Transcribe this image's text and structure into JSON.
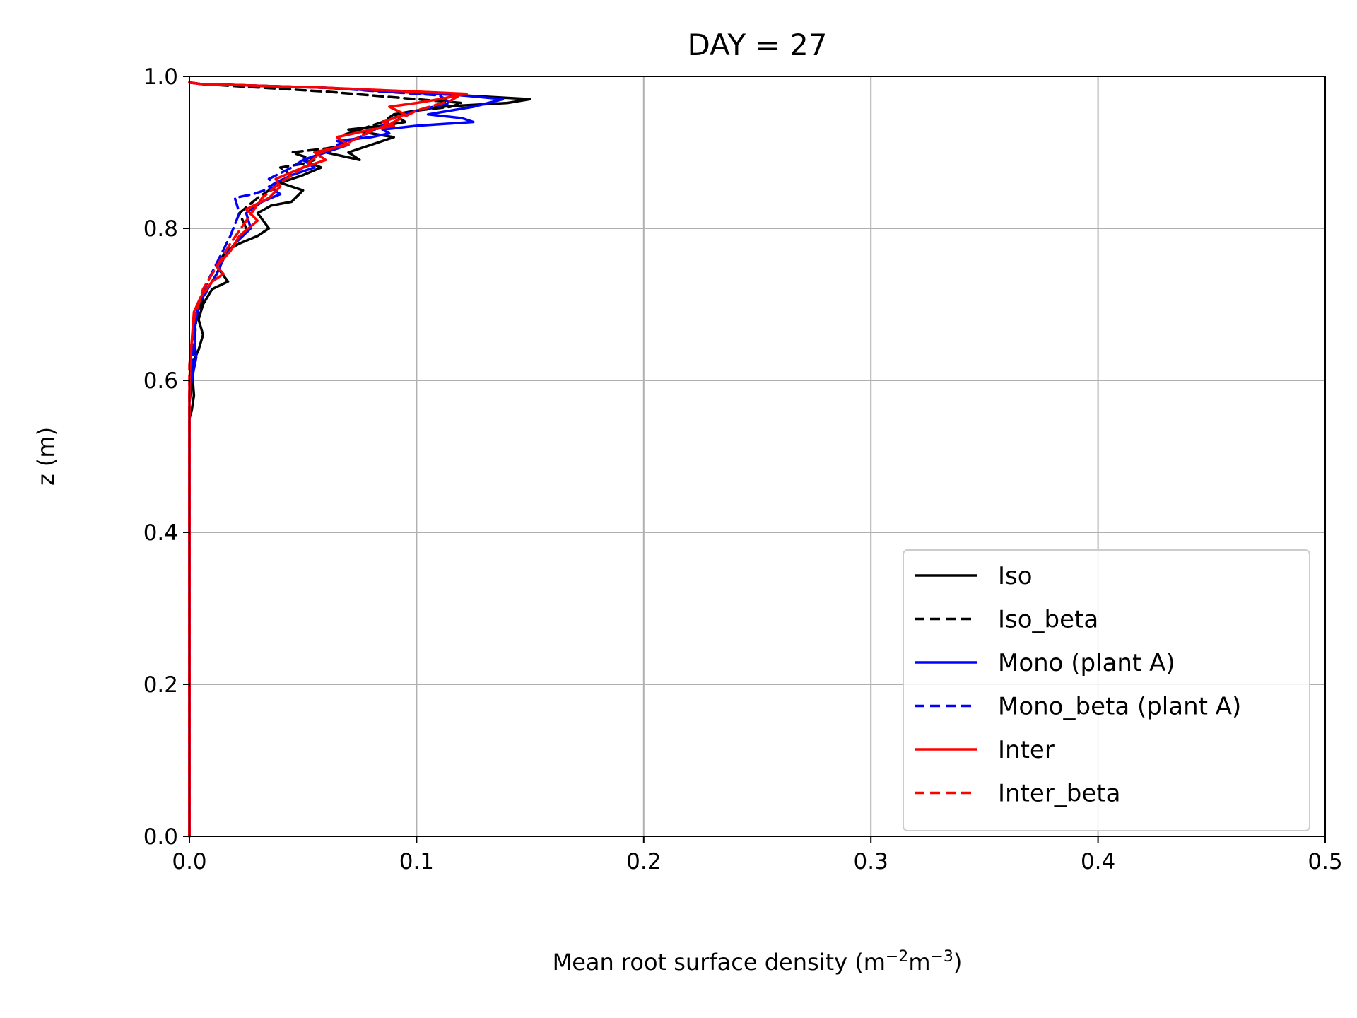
{
  "chart_data": {
    "type": "line",
    "title": "DAY = 27",
    "xlabel": "Mean root surface density",
    "xlabel_unit": "(m",
    "xlabel_exp1": "−2",
    "xlabel_mid": "m",
    "xlabel_exp2": "−3",
    "xlabel_close": ")",
    "ylabel": "z (m)",
    "xlim": [
      0.0,
      0.5
    ],
    "ylim": [
      0.0,
      1.0
    ],
    "xticks": [
      "0.0",
      "0.1",
      "0.2",
      "0.3",
      "0.4",
      "0.5"
    ],
    "yticks": [
      "0.0",
      "0.2",
      "0.4",
      "0.6",
      "0.8",
      "1.0"
    ],
    "grid": true,
    "legend_position": "lower-right",
    "series": [
      {
        "name": "Iso",
        "color": "#000000",
        "dash": "solid",
        "x": [
          0,
          0,
          0.001,
          0.002,
          0.001,
          0.004,
          0.006,
          0.004,
          0.006,
          0.01,
          0.017,
          0.012,
          0.016,
          0.022,
          0.03,
          0.035,
          0.03,
          0.036,
          0.045,
          0.05,
          0.04,
          0.05,
          0.058,
          0.05,
          0.06,
          0.075,
          0.07,
          0.08,
          0.09,
          0.07,
          0.085,
          0.095,
          0.09,
          0.11,
          0.14,
          0.15,
          0.12,
          0.06,
          0.005,
          0
        ],
        "y": [
          0.0,
          0.55,
          0.56,
          0.58,
          0.62,
          0.64,
          0.66,
          0.68,
          0.7,
          0.72,
          0.73,
          0.75,
          0.77,
          0.78,
          0.79,
          0.8,
          0.82,
          0.83,
          0.835,
          0.85,
          0.86,
          0.87,
          0.88,
          0.89,
          0.9,
          0.89,
          0.9,
          0.91,
          0.92,
          0.93,
          0.935,
          0.94,
          0.95,
          0.96,
          0.965,
          0.97,
          0.975,
          0.985,
          0.99,
          0.992
        ]
      },
      {
        "name": "Iso_beta",
        "color": "#000000",
        "dash": "dashed",
        "x": [
          0,
          0,
          0.001,
          0.002,
          0.003,
          0.005,
          0.008,
          0.012,
          0.015,
          0.02,
          0.025,
          0.022,
          0.03,
          0.035,
          0.038,
          0.045,
          0.04,
          0.05,
          0.055,
          0.045,
          0.06,
          0.07,
          0.065,
          0.075,
          0.085,
          0.09,
          0.1,
          0.115,
          0.12,
          0.1,
          0.06,
          0.005,
          0
        ],
        "y": [
          0.0,
          0.57,
          0.6,
          0.64,
          0.68,
          0.7,
          0.72,
          0.74,
          0.76,
          0.78,
          0.8,
          0.82,
          0.84,
          0.85,
          0.86,
          0.87,
          0.88,
          0.885,
          0.89,
          0.9,
          0.905,
          0.91,
          0.92,
          0.93,
          0.94,
          0.95,
          0.955,
          0.96,
          0.965,
          0.97,
          0.98,
          0.99,
          0.992
        ]
      },
      {
        "name": "Mono (plant A)",
        "color": "#0000ff",
        "dash": "solid",
        "x": [
          0,
          0,
          0.001,
          0.003,
          0.002,
          0.004,
          0.008,
          0.012,
          0.015,
          0.02,
          0.027,
          0.025,
          0.032,
          0.04,
          0.035,
          0.045,
          0.055,
          0.05,
          0.06,
          0.07,
          0.065,
          0.08,
          0.088,
          0.085,
          0.1,
          0.125,
          0.12,
          0.105,
          0.125,
          0.138,
          0.12,
          0.06,
          0.005,
          0
        ],
        "y": [
          0.0,
          0.58,
          0.6,
          0.63,
          0.66,
          0.7,
          0.72,
          0.74,
          0.76,
          0.78,
          0.8,
          0.82,
          0.835,
          0.845,
          0.855,
          0.87,
          0.88,
          0.89,
          0.9,
          0.91,
          0.915,
          0.92,
          0.925,
          0.93,
          0.935,
          0.94,
          0.945,
          0.95,
          0.96,
          0.97,
          0.975,
          0.985,
          0.99,
          0.992
        ]
      },
      {
        "name": "Mono_beta (plant A)",
        "color": "#0000ff",
        "dash": "dashed",
        "x": [
          0,
          0,
          0.001,
          0.002,
          0.004,
          0.008,
          0.013,
          0.018,
          0.022,
          0.02,
          0.028,
          0.038,
          0.035,
          0.045,
          0.05,
          0.06,
          0.065,
          0.075,
          0.085,
          0.09,
          0.1,
          0.115,
          0.11,
          0.06,
          0.005,
          0
        ],
        "y": [
          0.0,
          0.59,
          0.62,
          0.66,
          0.7,
          0.73,
          0.76,
          0.79,
          0.82,
          0.84,
          0.845,
          0.855,
          0.865,
          0.88,
          0.89,
          0.9,
          0.91,
          0.92,
          0.935,
          0.945,
          0.955,
          0.965,
          0.975,
          0.985,
          0.99,
          0.992
        ]
      },
      {
        "name": "Inter",
        "color": "#ff0000",
        "dash": "solid",
        "x": [
          0,
          0,
          0.001,
          0.002,
          0.005,
          0.01,
          0.015,
          0.012,
          0.018,
          0.022,
          0.03,
          0.025,
          0.035,
          0.04,
          0.038,
          0.05,
          0.06,
          0.055,
          0.07,
          0.065,
          0.08,
          0.09,
          0.085,
          0.095,
          0.088,
          0.1,
          0.11,
          0.122,
          0.06,
          0.005,
          0
        ],
        "y": [
          0.0,
          0.6,
          0.65,
          0.69,
          0.71,
          0.73,
          0.74,
          0.75,
          0.77,
          0.79,
          0.81,
          0.825,
          0.84,
          0.855,
          0.865,
          0.88,
          0.89,
          0.9,
          0.91,
          0.92,
          0.93,
          0.935,
          0.94,
          0.95,
          0.96,
          0.965,
          0.97,
          0.977,
          0.985,
          0.99,
          0.992
        ]
      },
      {
        "name": "Inter_beta",
        "color": "#ff0000",
        "dash": "dashed",
        "x": [
          0,
          0,
          0.002,
          0.006,
          0.012,
          0.018,
          0.025,
          0.032,
          0.04,
          0.05,
          0.058,
          0.068,
          0.078,
          0.09,
          0.1,
          0.115,
          0.12,
          0.06,
          0.005,
          0
        ],
        "y": [
          0.0,
          0.62,
          0.68,
          0.72,
          0.75,
          0.78,
          0.81,
          0.84,
          0.86,
          0.88,
          0.9,
          0.91,
          0.925,
          0.94,
          0.955,
          0.968,
          0.977,
          0.985,
          0.99,
          0.992
        ]
      }
    ]
  }
}
